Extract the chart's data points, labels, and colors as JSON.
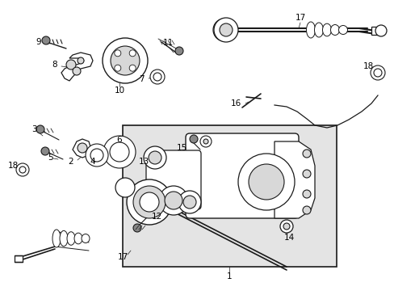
{
  "bg_color": "#ffffff",
  "lc": "#1a1a1a",
  "gray": "#b0b0b0",
  "dgray": "#888888",
  "lgray": "#d8d8d8",
  "boxfill": "#e4e4e4",
  "figsize": [
    4.89,
    3.6
  ],
  "dpi": 100,
  "xlim": [
    0,
    489
  ],
  "ylim": [
    0,
    360
  ]
}
